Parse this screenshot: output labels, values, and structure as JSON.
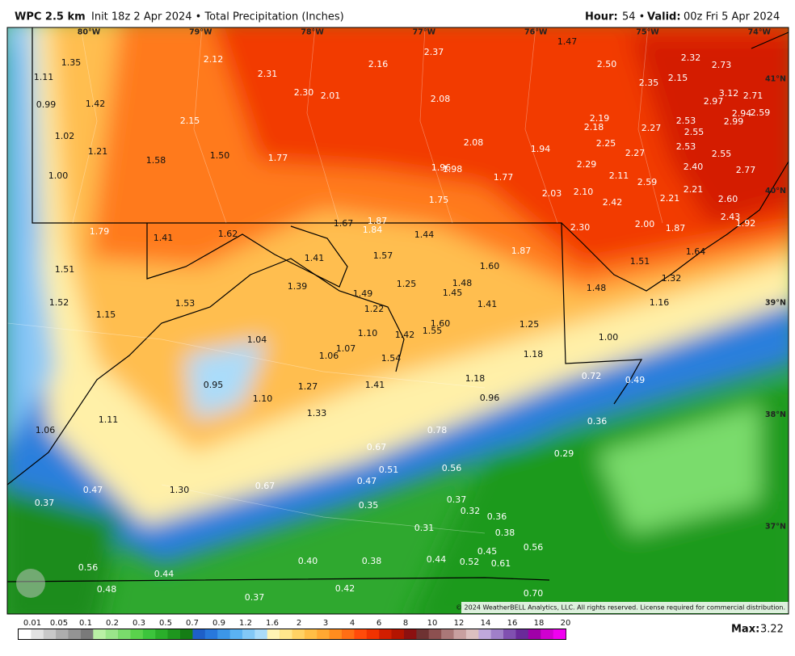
{
  "header": {
    "model": "WPC 2.5 km",
    "init": "Init 18z 2 Apr 2024 • Total Precipitation (Inches)",
    "hour_label": "Hour:",
    "hour": "54 •",
    "valid_label": "Valid:",
    "valid": "00z Fri 5 Apr 2024"
  },
  "map": {
    "longitudes": [
      "80°W",
      "79°W",
      "78°W",
      "77°W",
      "76°W",
      "75°W",
      "74°W"
    ],
    "latitudes": [
      "41°N",
      "40°N",
      "39°N",
      "38°N",
      "37°N"
    ],
    "values": [
      "1.35",
      "1.11",
      "0.99",
      "1.42",
      "1.02",
      "1.21",
      "1.00",
      "1.58",
      "2.12",
      "2.31",
      "2.30",
      "2.01",
      "2.15",
      "1.50",
      "1.77",
      "2.16",
      "2.37",
      "2.08",
      "2.08",
      "1.47",
      "2.50",
      "2.32",
      "2.73",
      "2.35",
      "2.15",
      "3.12",
      "2.71",
      "2.97",
      "2.94",
      "2.59",
      "2.99",
      "2.19",
      "2.18",
      "2.53",
      "2.27",
      "2.55",
      "2.25",
      "2.53",
      "1.94",
      "2.27",
      "2.55",
      "1.96",
      "1.98",
      "2.29",
      "2.11",
      "2.40",
      "2.77",
      "1.77",
      "2.59",
      "2.03",
      "2.10",
      "2.21",
      "2.21",
      "1.75",
      "2.42",
      "2.60",
      "2.43",
      "1.92",
      "1.79",
      "1.41",
      "1.62",
      "1.67",
      "1.87",
      "1.84",
      "1.44",
      "2.30",
      "2.00",
      "1.87",
      "1.64",
      "1.41",
      "1.57",
      "1.87",
      "1.60",
      "1.51",
      "1.51",
      "1.32",
      "1.39",
      "1.25",
      "1.48",
      "1.49",
      "1.45",
      "1.48",
      "1.52",
      "1.53",
      "1.22",
      "1.41",
      "1.16",
      "1.15",
      "1.60",
      "1.25",
      "1.55",
      "1.10",
      "1.42",
      "1.04",
      "1.00",
      "1.07",
      "1.06",
      "1.54",
      "1.18",
      "0.72",
      "0.49",
      "1.18",
      "0.95",
      "1.27",
      "1.41",
      "0.96",
      "1.10",
      "1.33",
      "1.06",
      "1.11",
      "0.36",
      "0.78",
      "0.67",
      "0.56",
      "0.51",
      "0.29",
      "0.47",
      "0.67",
      "0.47",
      "1.30",
      "0.37",
      "0.35",
      "0.37",
      "0.32",
      "0.36",
      "0.31",
      "0.38",
      "0.56",
      "0.45",
      "0.40",
      "0.38",
      "0.44",
      "0.52",
      "0.61",
      "0.56",
      "0.44",
      "0.48",
      "0.42",
      "0.37",
      "0.70"
    ],
    "copyright": "© 2024 WeatherBELL Analytics, LLC. All rights reserved. License required for commercial distribution."
  },
  "legend": {
    "ticks": [
      "0.01",
      "0.05",
      "0.1",
      "0.2",
      "0.3",
      "0.5",
      "0.7",
      "0.9",
      "1.2",
      "1.6",
      "2",
      "3",
      "4",
      "6",
      "8",
      "10",
      "12",
      "14",
      "16",
      "18",
      "20"
    ],
    "colors": [
      "#ffffff",
      "#e2e2e2",
      "#c8c8c8",
      "#adadad",
      "#949494",
      "#7a7a7a",
      "#b9f0a5",
      "#9ae68a",
      "#7adc6c",
      "#5ad24c",
      "#3cc43c",
      "#2aae2a",
      "#1e961e",
      "#157d15",
      "#1e5fc8",
      "#2878dc",
      "#3c96e8",
      "#5ab2f2",
      "#82c8f6",
      "#aadcfa",
      "#fff4b4",
      "#ffe68c",
      "#ffd264",
      "#ffbe46",
      "#ffa832",
      "#ff8c1e",
      "#ff6e14",
      "#ff4b0a",
      "#f03200",
      "#d21e00",
      "#b41400",
      "#8c1010",
      "#6e3232",
      "#8c5050",
      "#aa7878",
      "#c8a0a0",
      "#dcc0c0",
      "#c0a8dc",
      "#a080c8",
      "#8050b0",
      "#6a2a9a",
      "#a000a8",
      "#d000d0",
      "#f000f0"
    ],
    "max_label": "Max:",
    "max_value": "3.22"
  }
}
